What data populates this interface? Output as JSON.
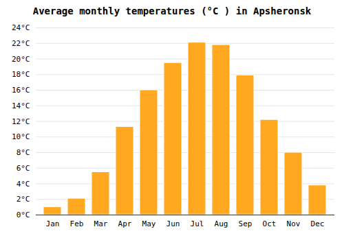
{
  "chart_data": {
    "type": "bar",
    "title": "Average monthly temperatures (°C ) in Apsheronsk",
    "categories": [
      "Jan",
      "Feb",
      "Mar",
      "Apr",
      "May",
      "Jun",
      "Jul",
      "Aug",
      "Sep",
      "Oct",
      "Nov",
      "Dec"
    ],
    "values": [
      1.0,
      2.1,
      5.5,
      11.3,
      16.0,
      19.5,
      22.1,
      21.8,
      17.9,
      12.2,
      8.0,
      3.8
    ],
    "color": "#FFA820",
    "ylim": [
      0,
      24
    ],
    "yticks": [
      {
        "value": 0,
        "label": "0°C"
      },
      {
        "value": 2,
        "label": "2°C"
      },
      {
        "value": 4,
        "label": "4°C"
      },
      {
        "value": 6,
        "label": "6°C"
      },
      {
        "value": 8,
        "label": "8°C"
      },
      {
        "value": 10,
        "label": "10°C"
      },
      {
        "value": 12,
        "label": "12°C"
      },
      {
        "value": 14,
        "label": "14°C"
      },
      {
        "value": 16,
        "label": "16°C"
      },
      {
        "value": 18,
        "label": "18°C"
      },
      {
        "value": 20,
        "label": "20°C"
      },
      {
        "value": 22,
        "label": "22°C"
      },
      {
        "value": 24,
        "label": "24°C"
      }
    ],
    "grid": true
  }
}
